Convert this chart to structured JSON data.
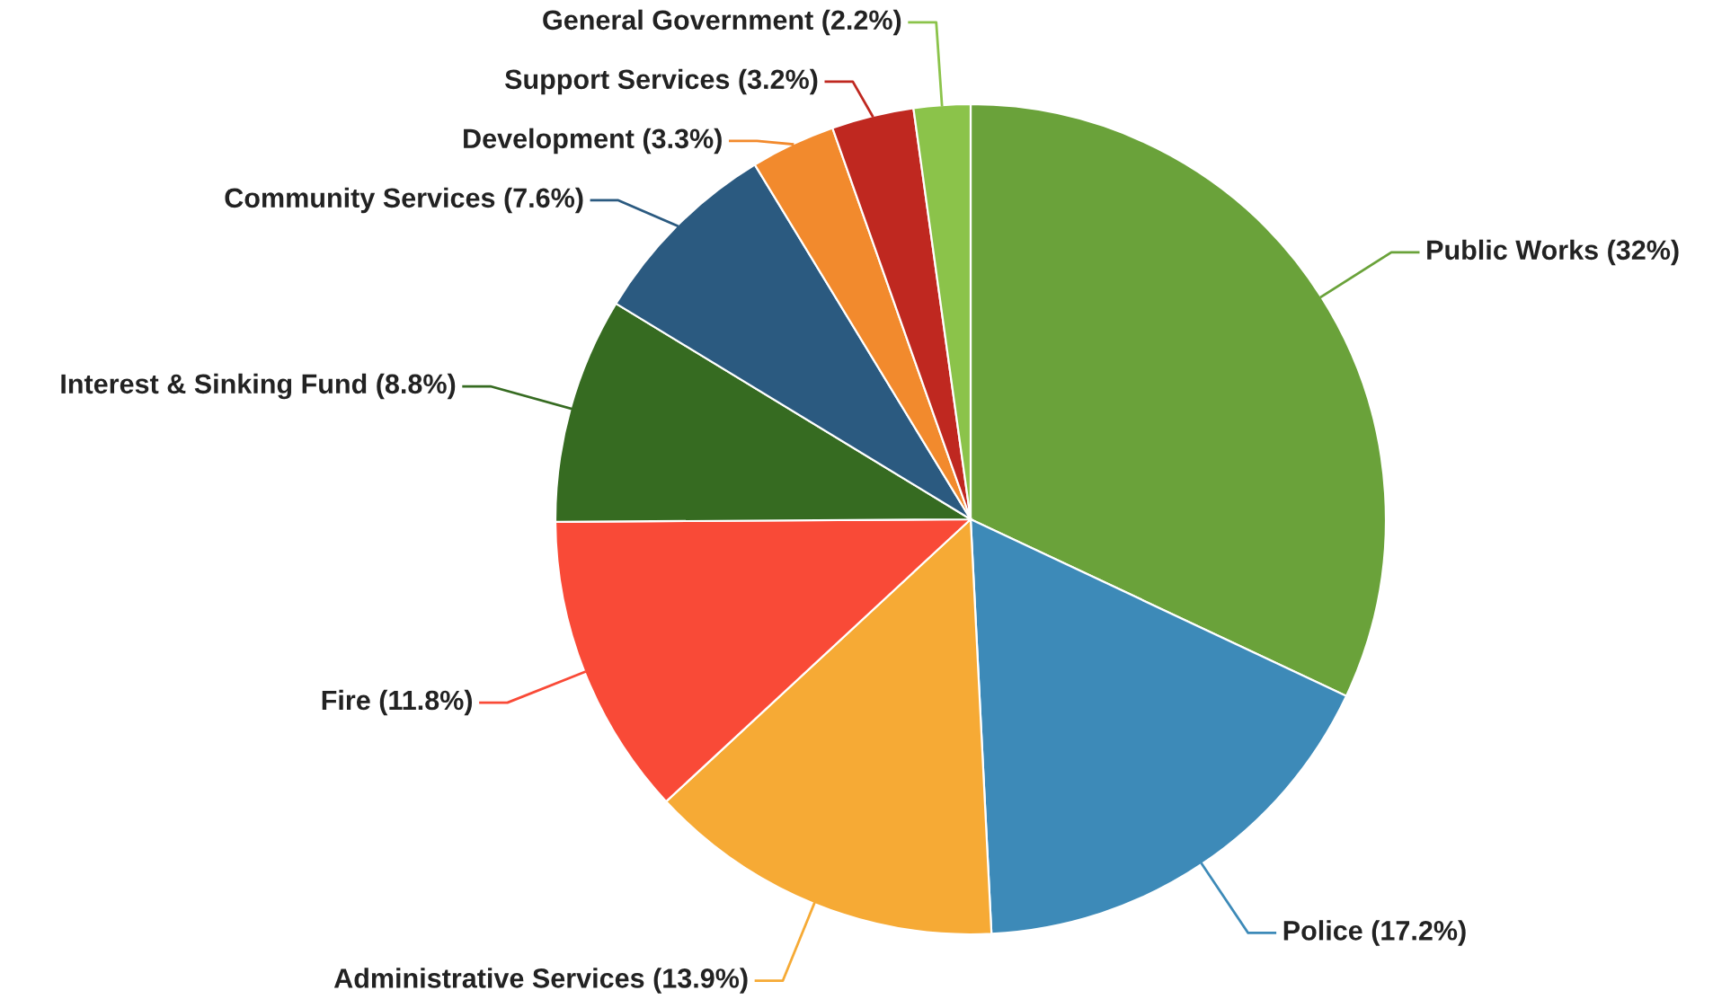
{
  "chart_data": {
    "type": "pie",
    "categories": [
      "Public Works",
      "Police",
      "Administrative Services",
      "Fire",
      "Interest & Sinking Fund",
      "Community Services",
      "Development",
      "Support Services",
      "General Government"
    ],
    "values": [
      32,
      17.2,
      13.9,
      11.8,
      8.8,
      7.6,
      3.3,
      3.2,
      2.2
    ],
    "value_labels": [
      "(32%)",
      "(17.2%)",
      "(13.9%)",
      "(11.8%)",
      "(8.8%)",
      "(7.6%)",
      "(3.3%)",
      "(3.2%)",
      "(2.2%)"
    ],
    "colors": [
      "#6aa23a",
      "#3d8ab8",
      "#f6aa35",
      "#f94a37",
      "#366b21",
      "#2b5a80",
      "#f28a2d",
      "#bf2820",
      "#8bc34a"
    ],
    "legend": false
  }
}
